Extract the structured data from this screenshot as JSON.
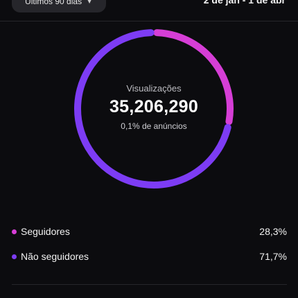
{
  "header": {
    "period_label": "Últimos 90 dias",
    "period_chevron_icon": "chevron-down-icon",
    "date_range": "2 de jan - 1 de abr"
  },
  "donut": {
    "label": "Visualizações",
    "value": "35,206,290",
    "subtitle": "0,1% de anúncios"
  },
  "chart_data": {
    "type": "pie",
    "categories": [
      "Seguidores",
      "Não seguidores"
    ],
    "values": [
      28.3,
      71.7
    ],
    "colors": [
      "#d63ed6",
      "#7d3cf4"
    ]
  },
  "legend": [
    {
      "label": "Seguidores",
      "value": "28,3%",
      "color": "#d63ed6"
    },
    {
      "label": "Não seguidores",
      "value": "71,7%",
      "color": "#7d3cf4"
    }
  ]
}
